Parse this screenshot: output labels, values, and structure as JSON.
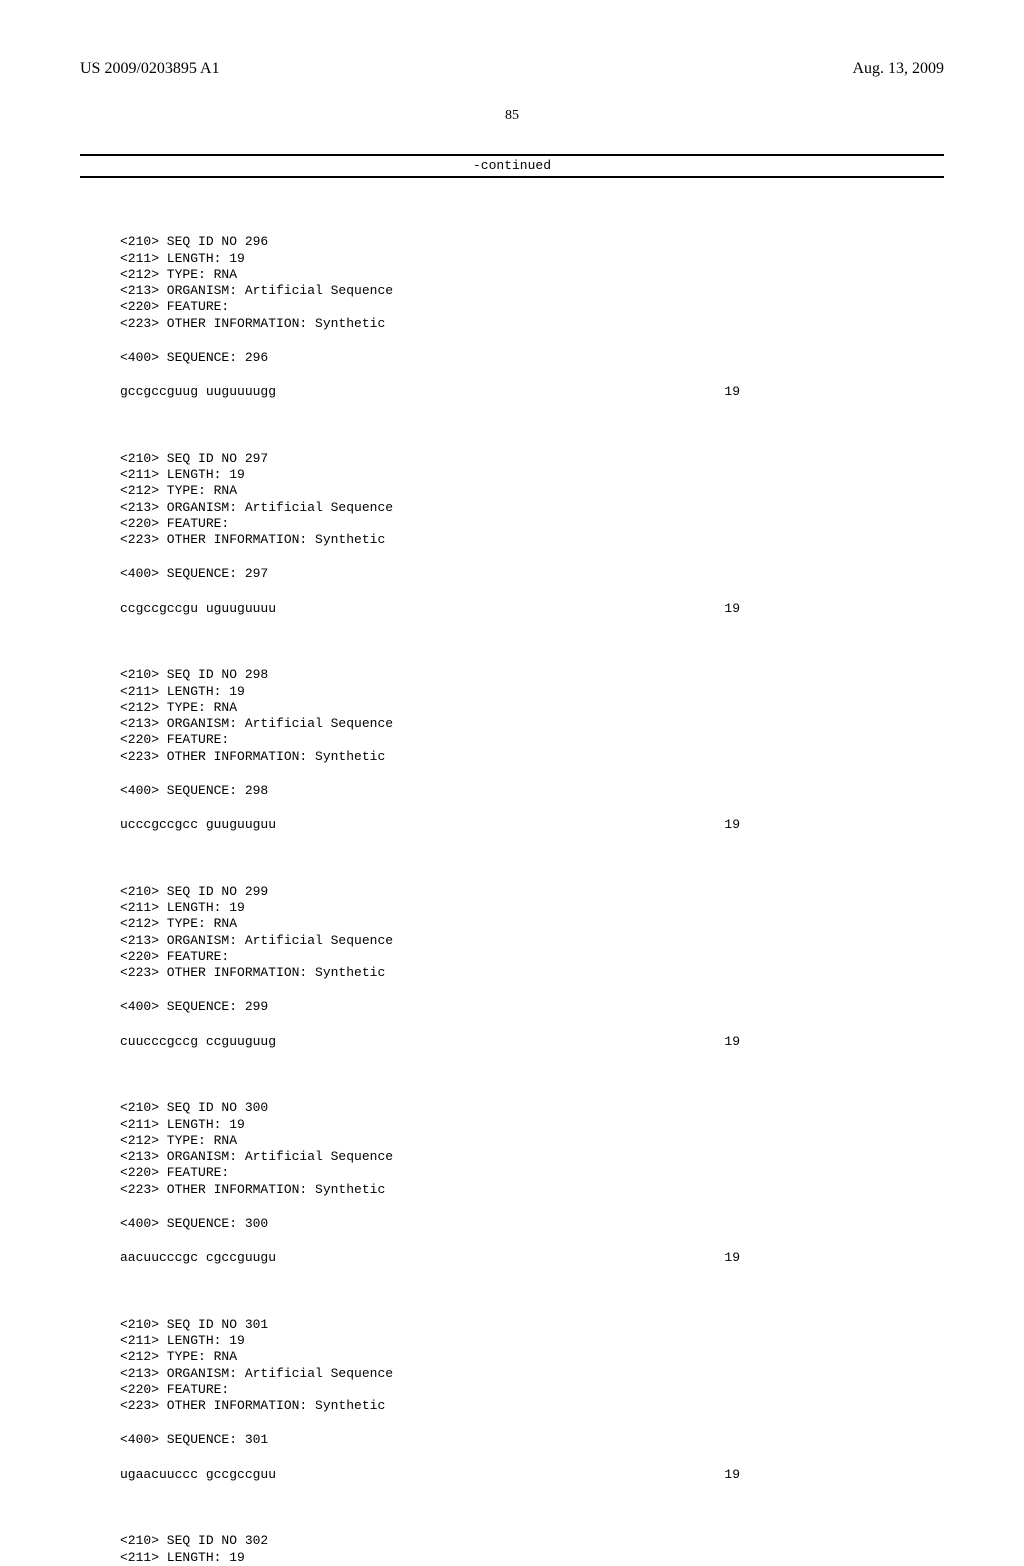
{
  "header": {
    "pub_no": "US 2009/0203895 A1",
    "pub_date": "Aug. 13, 2009"
  },
  "page_number": "85",
  "continued": "-continued",
  "entries": [
    {
      "id": "296",
      "length": "19",
      "type": "RNA",
      "organism": "Artificial Sequence",
      "feature": "",
      "other_info": "Synthetic",
      "sequence_label": "296",
      "sequence": "gccgccguug uuguuuugg",
      "seq_len": "19"
    },
    {
      "id": "297",
      "length": "19",
      "type": "RNA",
      "organism": "Artificial Sequence",
      "feature": "",
      "other_info": "Synthetic",
      "sequence_label": "297",
      "sequence": "ccgccgccgu uguuguuuu",
      "seq_len": "19"
    },
    {
      "id": "298",
      "length": "19",
      "type": "RNA",
      "organism": "Artificial Sequence",
      "feature": "",
      "other_info": "Synthetic",
      "sequence_label": "298",
      "sequence": "ucccgccgcc guuguuguu",
      "seq_len": "19"
    },
    {
      "id": "299",
      "length": "19",
      "type": "RNA",
      "organism": "Artificial Sequence",
      "feature": "",
      "other_info": "Synthetic",
      "sequence_label": "299",
      "sequence": "cuucccgccg ccguuguug",
      "seq_len": "19"
    },
    {
      "id": "300",
      "length": "19",
      "type": "RNA",
      "organism": "Artificial Sequence",
      "feature": "",
      "other_info": "Synthetic",
      "sequence_label": "300",
      "sequence": "aacuucccgc cgccguugu",
      "seq_len": "19"
    },
    {
      "id": "301",
      "length": "19",
      "type": "RNA",
      "organism": "Artificial Sequence",
      "feature": "",
      "other_info": "Synthetic",
      "sequence_label": "301",
      "sequence": "ugaacuuccc gccgccguu",
      "seq_len": "19"
    }
  ],
  "partial_entry": {
    "id": "302",
    "length": "19"
  },
  "labels": {
    "seq_id": "<210> SEQ ID NO ",
    "length": "<211> LENGTH: ",
    "type": "<212> TYPE: ",
    "organism": "<213> ORGANISM: ",
    "feature": "<220> FEATURE:",
    "other_info": "<223> OTHER INFORMATION: ",
    "sequence": "<400> SEQUENCE: "
  }
}
